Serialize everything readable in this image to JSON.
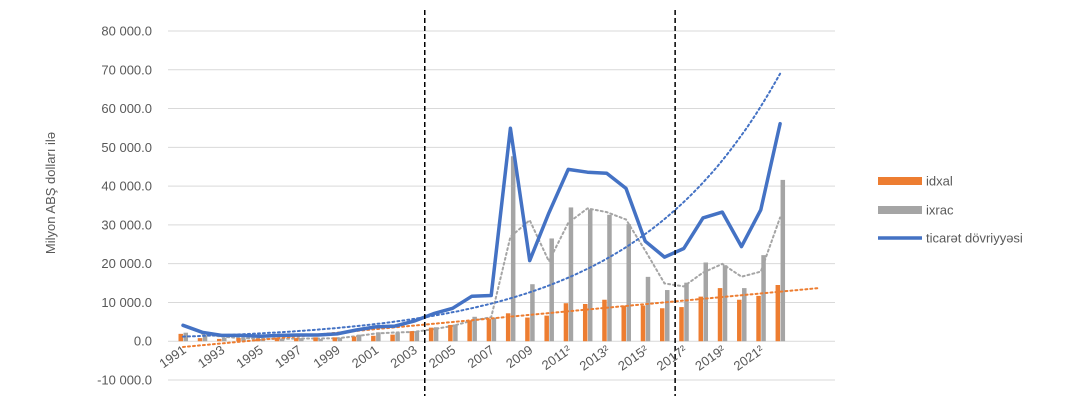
{
  "chart_data": {
    "type": "bar",
    "ylabel": "Milyon ABŞ dolları ilə",
    "ylim": [
      -10000,
      80000
    ],
    "yticks": [
      "-10 000.0",
      "0.0",
      "10 000.0",
      "20 000.0",
      "30 000.0",
      "40 000.0",
      "50 000.0",
      "60 000.0",
      "70 000.0",
      "80 000.0"
    ],
    "ytick_values": [
      -10000,
      0,
      10000,
      20000,
      30000,
      40000,
      50000,
      60000,
      70000,
      80000
    ],
    "years": [
      1991,
      1992,
      1993,
      1994,
      1995,
      1996,
      1997,
      1998,
      1999,
      2000,
      2001,
      2002,
      2003,
      2004,
      2005,
      2006,
      2007,
      2008,
      2009,
      2010,
      2011,
      2012,
      2013,
      2014,
      2015,
      2016,
      2017,
      2018,
      2019,
      2020,
      2021,
      2022
    ],
    "xtick_labels": [
      {
        "year": 1991,
        "text": "1991"
      },
      {
        "year": 1993,
        "text": "1993"
      },
      {
        "year": 1995,
        "text": "1995"
      },
      {
        "year": 1997,
        "text": "1997"
      },
      {
        "year": 1999,
        "text": "1999"
      },
      {
        "year": 2001,
        "text": "2001"
      },
      {
        "year": 2003,
        "text": "2003"
      },
      {
        "year": 2005,
        "text": "2005"
      },
      {
        "year": 2007,
        "text": "2007"
      },
      {
        "year": 2009,
        "text": "2009"
      },
      {
        "year": 2011,
        "text": "2011²"
      },
      {
        "year": 2013,
        "text": "2013²"
      },
      {
        "year": 2015,
        "text": "2015²"
      },
      {
        "year": 2017,
        "text": "2017²"
      },
      {
        "year": 2019,
        "text": "2019²"
      },
      {
        "year": 2021,
        "text": "2021²"
      }
    ],
    "series": [
      {
        "name": "idxal",
        "kind": "bar",
        "color": "#ED7D31",
        "values": [
          1900,
          800,
          600,
          800,
          700,
          900,
          800,
          1000,
          1000,
          1200,
          1400,
          1700,
          2600,
          3500,
          4200,
          5300,
          5700,
          7200,
          6100,
          6600,
          9800,
          9600,
          10700,
          9200,
          9200,
          8500,
          8800,
          11500,
          13700,
          10700,
          11700,
          14500
        ]
      },
      {
        "name": "ixrac",
        "kind": "bar",
        "color": "#A5A5A5",
        "values": [
          2200,
          1500,
          900,
          700,
          600,
          600,
          800,
          600,
          900,
          1700,
          2300,
          2200,
          2600,
          3600,
          4300,
          6300,
          6100,
          47700,
          14700,
          26500,
          34500,
          34000,
          32600,
          30200,
          16600,
          13200,
          15100,
          20300,
          19600,
          13700,
          22200,
          41600
        ]
      },
      {
        "name": "ticarət dövriyyəsi",
        "kind": "line",
        "color": "#4472C4",
        "values": [
          4100,
          2300,
          1500,
          1500,
          1300,
          1500,
          1600,
          1600,
          1900,
          2900,
          3700,
          3900,
          5200,
          7100,
          8500,
          11600,
          11800,
          54900,
          20800,
          33100,
          44300,
          43600,
          43300,
          39400,
          25800,
          21700,
          23900,
          31800,
          33300,
          24400,
          33900,
          56100
        ]
      }
    ],
    "trendlines": [
      {
        "of": "idxal",
        "type": "linear",
        "color": "#ED7D31",
        "style": "dotted",
        "years": [
          1991,
          2024
        ],
        "values": [
          -1500,
          13700
        ]
      },
      {
        "of": "ixrac",
        "type": "moving average",
        "color": "#A5A5A5",
        "style": "dotted"
      },
      {
        "of": "ticarət dövriyyəsi",
        "type": "exponential",
        "color": "#4472C4",
        "style": "dotted",
        "years": [
          1991,
          2022
        ],
        "values": [
          1200,
          69000
        ]
      }
    ],
    "vertical_markers": [
      {
        "after_year": 2003,
        "style": "dashed",
        "color": "#000000"
      },
      {
        "after_year": 2016,
        "style": "dashed",
        "color": "#000000"
      }
    ],
    "grid": true,
    "legend_position": "right",
    "legend": [
      {
        "label": "idxal",
        "color": "#ED7D31",
        "marker": "bar"
      },
      {
        "label": "ixrac",
        "color": "#A5A5A5",
        "marker": "bar"
      },
      {
        "label": "ticarət dövriyyəsi",
        "color": "#4472C4",
        "marker": "line"
      }
    ]
  }
}
